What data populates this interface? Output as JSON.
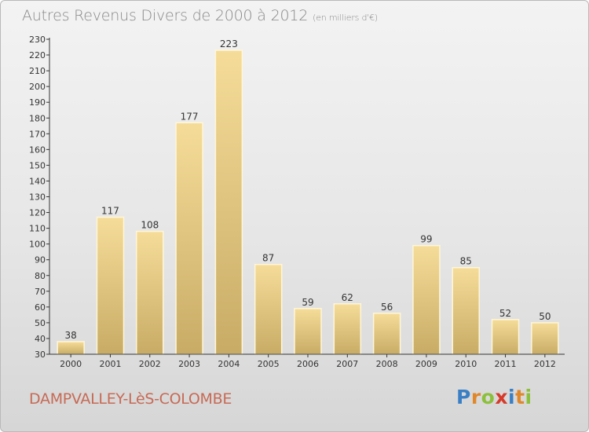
{
  "header": {
    "title": "Autres Revenus Divers de 2000 à 2012",
    "subtitle": "(en milliers d'€)"
  },
  "footer": {
    "place": "DAMPVALLEY-LèS-COLOMBE",
    "logo": {
      "letters": [
        "P",
        "r",
        "o",
        "x",
        "i",
        "t",
        "i"
      ],
      "colors": [
        "#3a7fc4",
        "#e0872a",
        "#8cc03c",
        "#d63a2a",
        "#3a7fc4",
        "#e0872a",
        "#8cc03c"
      ]
    }
  },
  "chart_data": {
    "type": "bar",
    "title": "Autres Revenus Divers de 2000 à 2012",
    "subtitle": "(en milliers d'€)",
    "categories": [
      "2000",
      "2001",
      "2002",
      "2003",
      "2004",
      "2005",
      "2006",
      "2007",
      "2008",
      "2009",
      "2010",
      "2011",
      "2012"
    ],
    "values": [
      38,
      117,
      108,
      177,
      223,
      87,
      59,
      62,
      56,
      99,
      85,
      52,
      50
    ],
    "ylim": [
      30,
      230
    ],
    "yticks": [
      30,
      40,
      50,
      60,
      70,
      80,
      90,
      100,
      110,
      120,
      130,
      140,
      150,
      160,
      170,
      180,
      190,
      200,
      210,
      220,
      230
    ],
    "grid": false,
    "colors": {
      "bar_light": "#f5dc98",
      "bar_dark": "#c8ac66",
      "axis": "#333333"
    }
  }
}
